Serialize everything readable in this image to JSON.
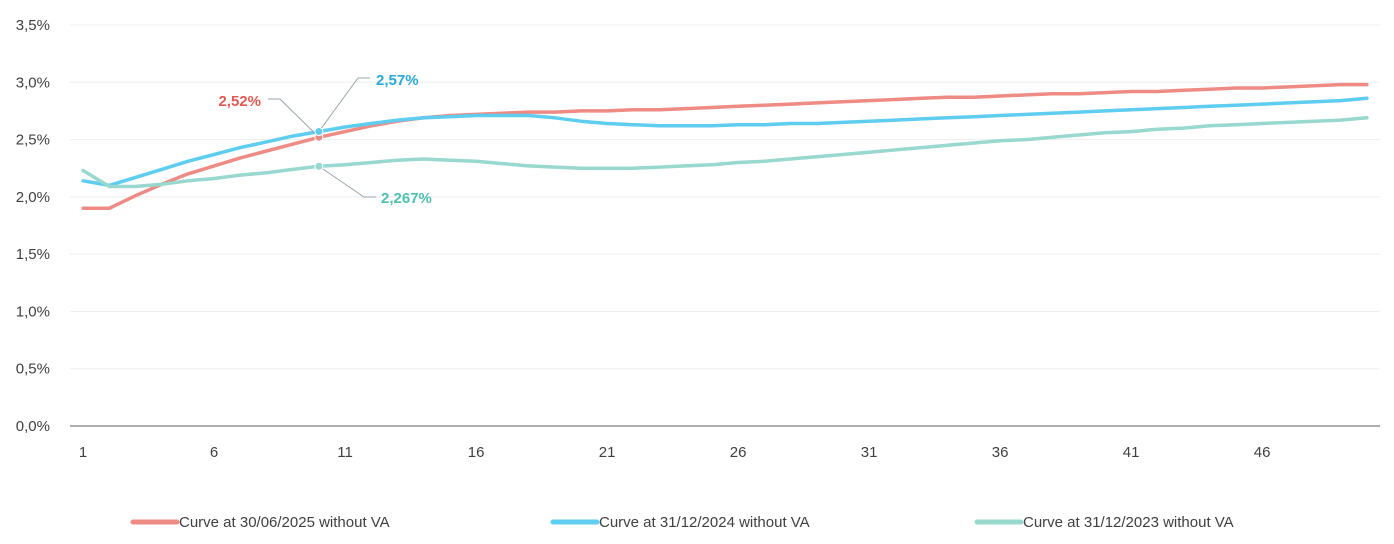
{
  "chart_data": {
    "type": "line",
    "title": "",
    "xlabel": "",
    "ylabel": "",
    "x_ticks": [
      "1",
      "6",
      "11",
      "16",
      "21",
      "26",
      "31",
      "36",
      "41",
      "46"
    ],
    "y_ticks": [
      "0,0%",
      "0,5%",
      "1,0%",
      "1,5%",
      "2,0%",
      "2,5%",
      "3,0%",
      "3,5%"
    ],
    "xlim": [
      1,
      50
    ],
    "ylim": [
      0,
      3.5
    ],
    "grid": "horizontal",
    "legend_position": "bottom",
    "x": [
      1,
      2,
      3,
      4,
      5,
      6,
      7,
      8,
      9,
      10,
      11,
      12,
      13,
      14,
      15,
      16,
      17,
      18,
      19,
      20,
      21,
      22,
      23,
      24,
      25,
      26,
      27,
      28,
      29,
      30,
      31,
      32,
      33,
      34,
      35,
      36,
      37,
      38,
      39,
      40,
      41,
      42,
      43,
      44,
      45,
      46,
      47,
      48,
      49,
      50
    ],
    "series": [
      {
        "name": "Curve at 30/06/2025 without VA",
        "color": "#ee8b85",
        "values": [
          1.9,
          1.9,
          2.01,
          2.11,
          2.2,
          2.27,
          2.34,
          2.4,
          2.46,
          2.52,
          2.57,
          2.62,
          2.66,
          2.69,
          2.71,
          2.72,
          2.73,
          2.74,
          2.74,
          2.75,
          2.75,
          2.76,
          2.76,
          2.77,
          2.78,
          2.79,
          2.8,
          2.81,
          2.82,
          2.83,
          2.84,
          2.85,
          2.86,
          2.87,
          2.87,
          2.88,
          2.89,
          2.9,
          2.9,
          2.91,
          2.92,
          2.92,
          2.93,
          2.94,
          2.95,
          2.95,
          2.96,
          2.97,
          2.98,
          2.98
        ]
      },
      {
        "name": "Curve at 31/12/2024 without VA",
        "color": "#5ecdf0",
        "values": [
          2.14,
          2.1,
          2.17,
          2.24,
          2.31,
          2.37,
          2.43,
          2.48,
          2.53,
          2.57,
          2.61,
          2.64,
          2.67,
          2.69,
          2.7,
          2.71,
          2.71,
          2.71,
          2.69,
          2.66,
          2.64,
          2.63,
          2.62,
          2.62,
          2.62,
          2.63,
          2.63,
          2.64,
          2.64,
          2.65,
          2.66,
          2.67,
          2.68,
          2.69,
          2.7,
          2.71,
          2.72,
          2.73,
          2.74,
          2.75,
          2.76,
          2.77,
          2.78,
          2.79,
          2.8,
          2.81,
          2.82,
          2.83,
          2.84,
          2.86
        ]
      },
      {
        "name": "Curve at 31/12/2023 without VA",
        "color": "#98d8cf",
        "values": [
          2.23,
          2.09,
          2.09,
          2.11,
          2.14,
          2.16,
          2.19,
          2.21,
          2.24,
          2.267,
          2.28,
          2.3,
          2.32,
          2.33,
          2.32,
          2.31,
          2.29,
          2.27,
          2.26,
          2.25,
          2.25,
          2.25,
          2.26,
          2.27,
          2.28,
          2.3,
          2.31,
          2.33,
          2.35,
          2.37,
          2.39,
          2.41,
          2.43,
          2.45,
          2.47,
          2.49,
          2.5,
          2.52,
          2.54,
          2.56,
          2.57,
          2.59,
          2.6,
          2.62,
          2.63,
          2.64,
          2.65,
          2.66,
          2.67,
          2.69
        ]
      }
    ],
    "annotations": [
      {
        "text": "2,52%",
        "series": 0,
        "x": 10,
        "y": 2.52,
        "color": "#e05a55"
      },
      {
        "text": "2,57%",
        "series": 1,
        "x": 10,
        "y": 2.57,
        "color": "#2aa8d8"
      },
      {
        "text": "2,267%",
        "series": 2,
        "x": 10,
        "y": 2.267,
        "color": "#4dbfb0"
      }
    ]
  }
}
